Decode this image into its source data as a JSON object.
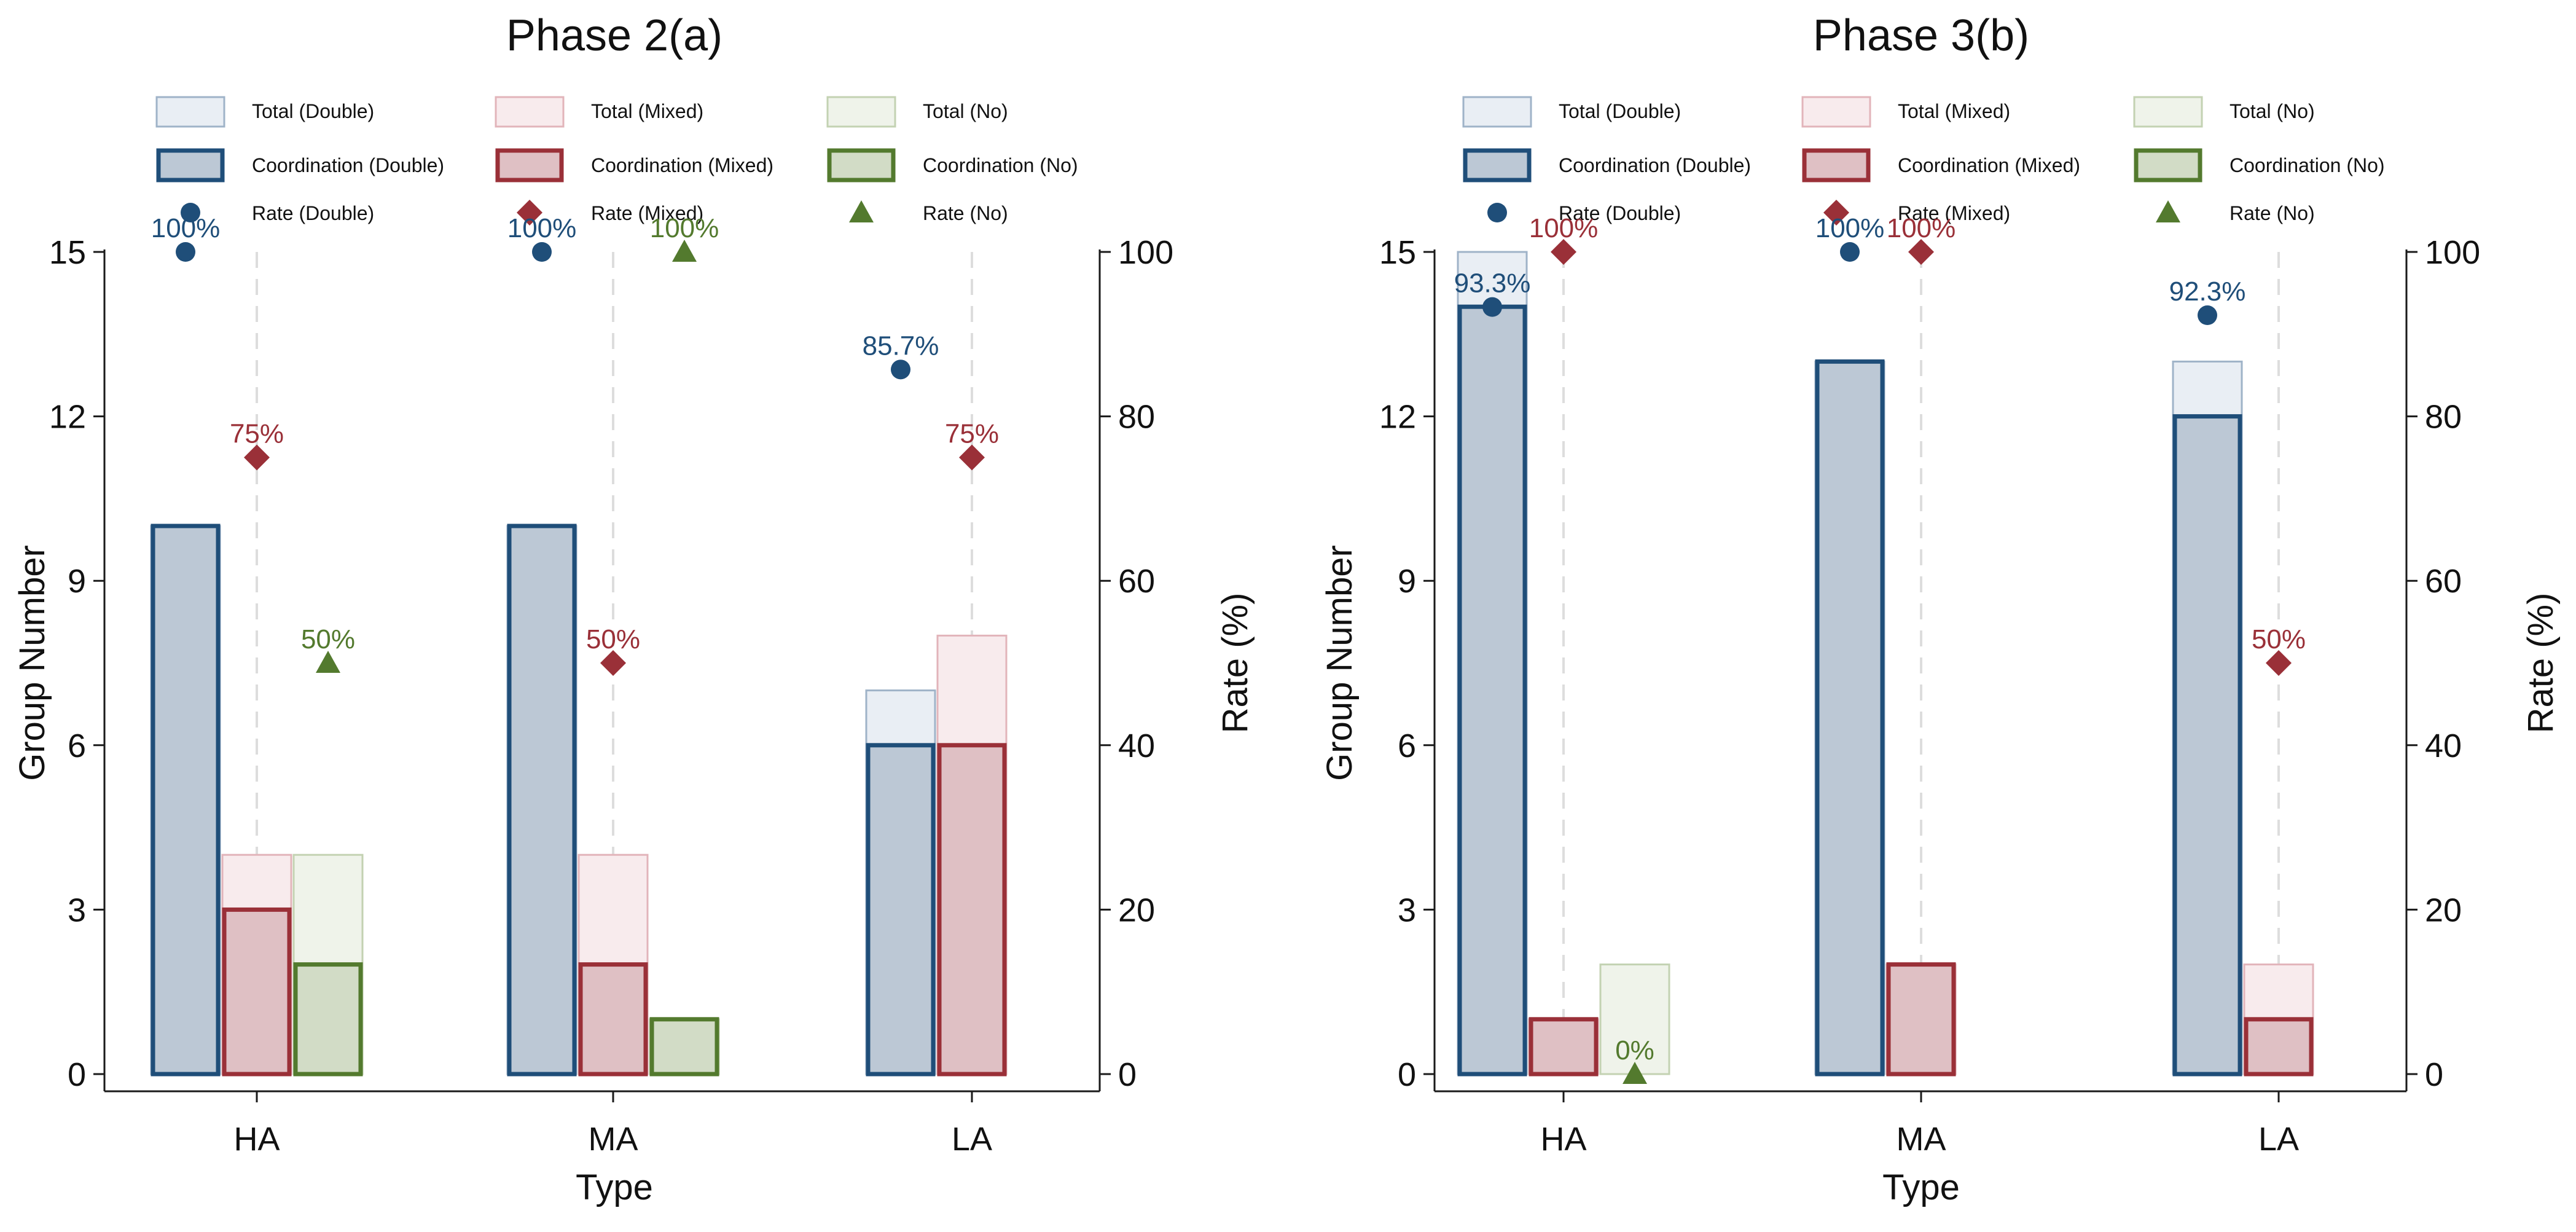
{
  "chart_data": [
    {
      "type": "bar",
      "title": "Phase 2(a)",
      "xlabel": "Type",
      "ylabel": "Group Number",
      "y2label": "Rate (%)",
      "ylim": [
        0,
        15
      ],
      "y2lim": [
        0,
        100
      ],
      "yticks": [
        0,
        3,
        6,
        9,
        12,
        15
      ],
      "y2ticks": [
        0,
        20,
        40,
        60,
        80,
        100
      ],
      "categories": [
        "HA",
        "MA",
        "LA"
      ],
      "series": [
        {
          "name": "Total (Double)",
          "values": [
            10,
            10,
            7
          ]
        },
        {
          "name": "Total (Mixed)",
          "values": [
            4,
            4,
            8
          ]
        },
        {
          "name": "Total (No)",
          "values": [
            4,
            1,
            0
          ]
        },
        {
          "name": "Coordination (Double)",
          "values": [
            10,
            10,
            6
          ]
        },
        {
          "name": "Coordination (Mixed)",
          "values": [
            3,
            2,
            6
          ]
        },
        {
          "name": "Coordination (No)",
          "values": [
            2,
            1,
            0
          ]
        }
      ],
      "rates": [
        {
          "name": "Rate (Double)",
          "values": [
            100,
            100,
            85.7
          ],
          "labels": [
            "100%",
            "100%",
            "85.7%"
          ]
        },
        {
          "name": "Rate (Mixed)",
          "values": [
            75,
            50,
            75
          ],
          "labels": [
            "75%",
            "50%",
            "75%"
          ]
        },
        {
          "name": "Rate (No)",
          "values": [
            50,
            100,
            null
          ],
          "labels": [
            "50%",
            "100%",
            null
          ]
        }
      ]
    },
    {
      "type": "bar",
      "title": "Phase 3(b)",
      "xlabel": "Type",
      "ylabel": "Group Number",
      "y2label": "Rate (%)",
      "ylim": [
        0,
        15
      ],
      "y2lim": [
        0,
        100
      ],
      "yticks": [
        0,
        3,
        6,
        9,
        12,
        15
      ],
      "y2ticks": [
        0,
        20,
        40,
        60,
        80,
        100
      ],
      "categories": [
        "HA",
        "MA",
        "LA"
      ],
      "series": [
        {
          "name": "Total (Double)",
          "values": [
            15,
            13,
            13
          ]
        },
        {
          "name": "Total (Mixed)",
          "values": [
            1,
            2,
            2
          ]
        },
        {
          "name": "Total (No)",
          "values": [
            2,
            0,
            0
          ]
        },
        {
          "name": "Coordination (Double)",
          "values": [
            14,
            13,
            12
          ]
        },
        {
          "name": "Coordination (Mixed)",
          "values": [
            1,
            2,
            1
          ]
        },
        {
          "name": "Coordination (No)",
          "values": [
            0,
            0,
            0
          ]
        }
      ],
      "rates": [
        {
          "name": "Rate (Double)",
          "values": [
            93.3,
            100,
            92.3
          ],
          "labels": [
            "93.3%",
            "100%",
            "92.3%"
          ]
        },
        {
          "name": "Rate (Mixed)",
          "values": [
            100,
            100,
            50
          ],
          "labels": [
            "100%",
            "100%",
            "50%"
          ]
        },
        {
          "name": "Rate (No)",
          "values": [
            0,
            null,
            null
          ],
          "labels": [
            "0%",
            null,
            null
          ]
        }
      ]
    }
  ],
  "colors": {
    "double": "#1f4e79",
    "mixed": "#9a3038",
    "no": "#537a2e",
    "double_fill": "#bcc8d5",
    "mixed_fill": "#dfc0c4",
    "no_fill": "#d2dcc6",
    "double_total_fill": "#e9eef4",
    "mixed_total_fill": "#f8ebed",
    "no_total_fill": "#eff3ea",
    "double_total_stroke": "#9fb3c8",
    "mixed_total_stroke": "#e2b4ba",
    "no_total_stroke": "#c3d2b2",
    "axis": "#1a1a1a",
    "guide": "#dddddd"
  }
}
